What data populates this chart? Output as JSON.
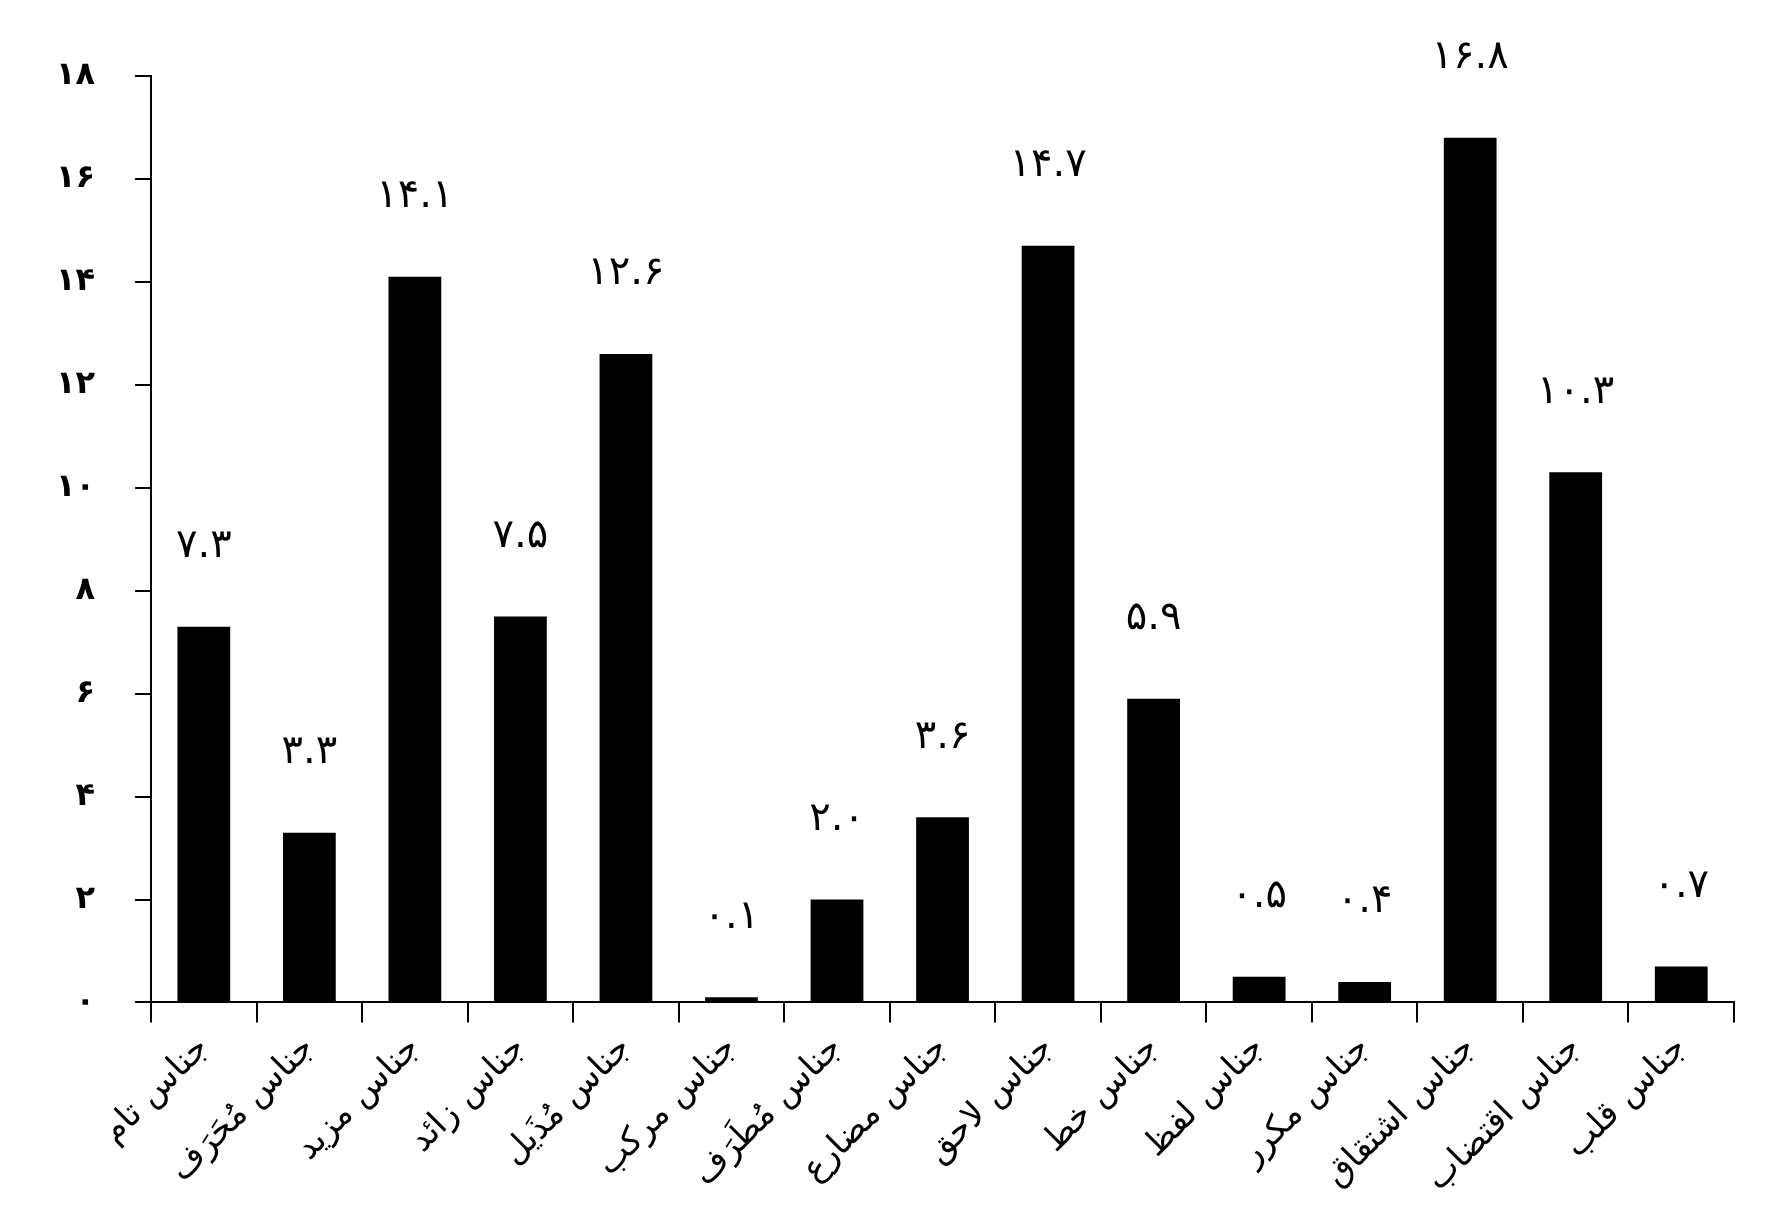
{
  "chart_data": {
    "type": "bar",
    "categories": [
      "جناس تام",
      "جناس مُحَرَف",
      "جناس مزید",
      "جناس زائد",
      "جناس مُذَیل",
      "جناس مرکب",
      "جناس مُطَرَف",
      "جناس مضارع",
      "جناس لاحق",
      "جناس خط",
      "جناس لفظ",
      "جناس مکرر",
      "جناس اشتقاق",
      "جناس اقتضاب",
      "جناس قلب"
    ],
    "values": [
      7.3,
      3.3,
      14.1,
      7.5,
      12.6,
      0.1,
      2.0,
      3.6,
      14.7,
      5.9,
      0.5,
      0.4,
      16.8,
      10.3,
      0.7
    ],
    "value_labels": [
      "۷.۳",
      "۳.۳",
      "۱۴.۱",
      "۷.۵",
      "۱۲.۶",
      "۰.۱",
      "۲.۰",
      "۳.۶",
      "۱۴.۷",
      "۵.۹",
      "۰.۵",
      "۰.۴",
      "۱۶.۸",
      "۱۰.۳",
      "۰.۷"
    ],
    "color": "#000000",
    "ylim": [
      0,
      18
    ],
    "yticks": [
      {
        "value": 0,
        "label": "۰"
      },
      {
        "value": 2,
        "label": "۲"
      },
      {
        "value": 4,
        "label": "۴"
      },
      {
        "value": 6,
        "label": "۶"
      },
      {
        "value": 8,
        "label": "۸"
      },
      {
        "value": 10,
        "label": "۱۰"
      },
      {
        "value": 12,
        "label": "۱۲"
      },
      {
        "value": 14,
        "label": "۱۴"
      },
      {
        "value": 16,
        "label": "۱۶"
      },
      {
        "value": 18,
        "label": "۱۸"
      }
    ],
    "grid": false,
    "legend": false
  }
}
